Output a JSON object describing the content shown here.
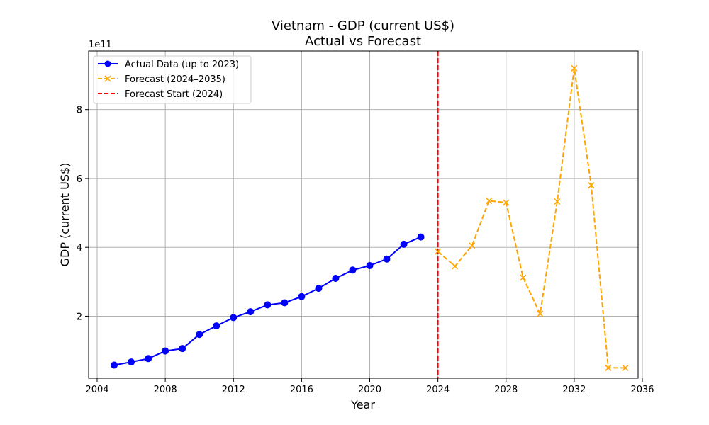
{
  "chart_data": {
    "type": "line",
    "title": "Vietnam - GDP (current US$)",
    "subtitle": "Actual vs Forecast",
    "xlabel": "Year",
    "ylabel": "GDP (current US$)",
    "y_offset_label": "1e11",
    "xlim": [
      2003.5,
      2035.75
    ],
    "ylim": [
      0.2,
      9.7
    ],
    "x_ticks": [
      2004,
      2008,
      2012,
      2016,
      2020,
      2024,
      2028,
      2032,
      2036
    ],
    "y_ticks": [
      2,
      4,
      6,
      8
    ],
    "grid": true,
    "legend_position": "upper-left",
    "series": [
      {
        "name": "Actual Data (up to 2023)",
        "color": "#0000ff",
        "line_style": "solid",
        "marker": "circle",
        "x": [
          2005,
          2006,
          2007,
          2008,
          2009,
          2010,
          2011,
          2012,
          2013,
          2014,
          2015,
          2016,
          2017,
          2018,
          2019,
          2020,
          2021,
          2022,
          2023
        ],
        "y": [
          0.58,
          0.67,
          0.77,
          0.99,
          1.06,
          1.47,
          1.72,
          1.96,
          2.13,
          2.33,
          2.39,
          2.57,
          2.81,
          3.1,
          3.34,
          3.47,
          3.66,
          4.09,
          4.3
        ]
      },
      {
        "name": "Forecast (2024–2035)",
        "color": "#ffa500",
        "line_style": "dashed",
        "marker": "x",
        "x": [
          2024,
          2025,
          2026,
          2027,
          2028,
          2029,
          2030,
          2031,
          2032,
          2033,
          2034,
          2035
        ],
        "y": [
          3.88,
          3.45,
          4.05,
          5.35,
          5.3,
          3.12,
          2.07,
          5.33,
          9.2,
          5.8,
          0.5,
          0.5
        ]
      }
    ],
    "vertical_line": {
      "name": "Forecast Start (2024)",
      "x": 2024,
      "color": "#ff0000",
      "line_style": "dashed"
    }
  }
}
